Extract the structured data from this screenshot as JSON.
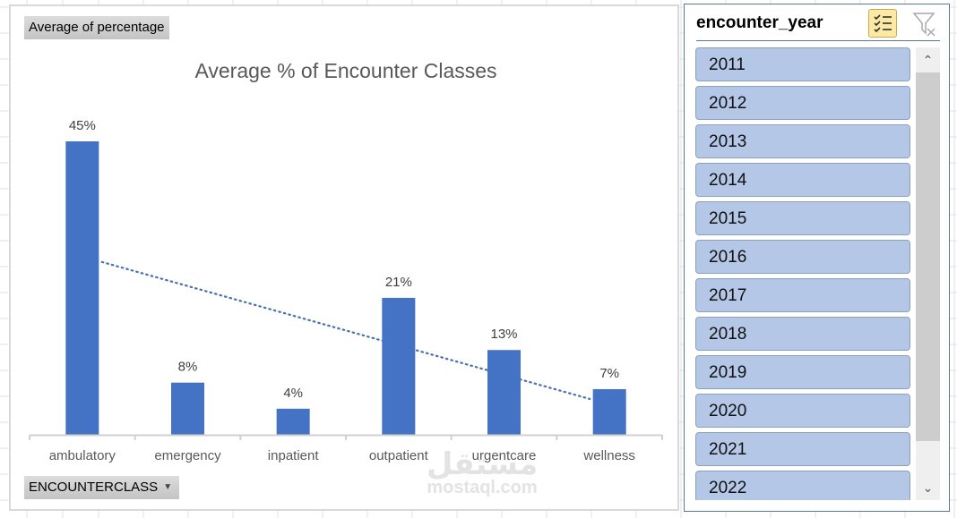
{
  "value_field_button": "Average of percentage",
  "axis_field_button": "ENCOUNTERCLASS",
  "watermark": {
    "arabic": "مستقل",
    "latin": "mostaql.com"
  },
  "colors": {
    "bar": "#4472c4",
    "trendline": "#4a6fb0",
    "slicer_item": "#b4c7e7",
    "slicer_border": "#5b7895"
  },
  "chart_data": {
    "type": "bar",
    "title": "Average % of Encounter Classes",
    "xlabel": "",
    "ylabel": "",
    "categories": [
      "ambulatory",
      "emergency",
      "inpatient",
      "outpatient",
      "urgentcare",
      "wellness"
    ],
    "values": [
      45,
      8,
      4,
      21,
      13,
      7
    ],
    "data_labels": [
      "45%",
      "8%",
      "4%",
      "21%",
      "13%",
      "7%"
    ],
    "value_unit": "%",
    "ylim": [
      0,
      45
    ],
    "grid": false,
    "legend": "none",
    "trendline": {
      "type": "linear",
      "style": "dotted",
      "start_value": 26.5,
      "end_value": 5.5
    }
  },
  "slicer": {
    "title": "encounter_year",
    "multiselect_icon": "multi-select-icon",
    "clear_icon": "clear-filter-icon",
    "items": [
      "2011",
      "2012",
      "2013",
      "2014",
      "2015",
      "2016",
      "2017",
      "2018",
      "2019",
      "2020",
      "2021",
      "2022"
    ],
    "scroll_up_icon": "chevron-up-icon",
    "scroll_down_icon": "chevron-down-icon"
  }
}
